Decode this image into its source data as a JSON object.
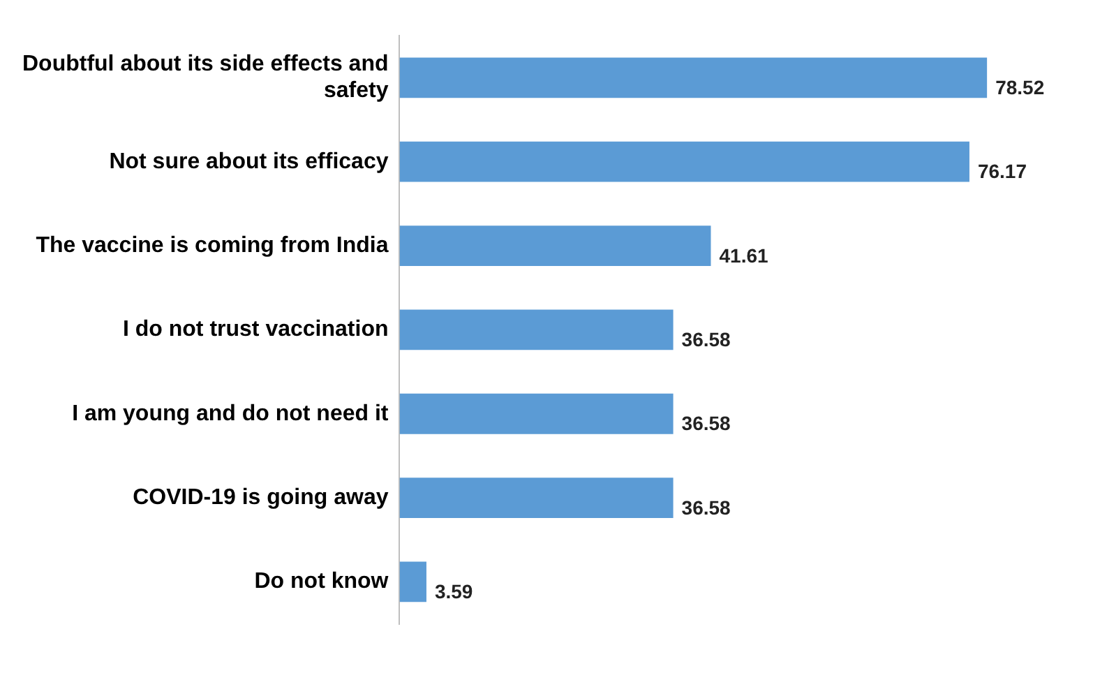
{
  "chart_data": {
    "type": "bar",
    "orientation": "horizontal",
    "categories": [
      "Doubtful about its side effects and safety",
      "Not sure about its efficacy",
      "The vaccine is coming from India",
      "I do not trust vaccination",
      "I am young and do not need it",
      "COVID-19 is going away",
      "Do not know"
    ],
    "values": [
      78.52,
      76.17,
      41.61,
      36.58,
      36.58,
      36.58,
      3.59
    ],
    "color": "#5b9bd5",
    "data_labels": true
  }
}
